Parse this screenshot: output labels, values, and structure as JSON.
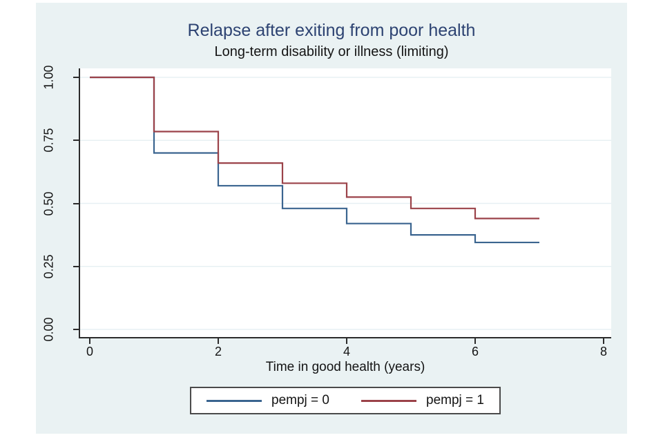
{
  "chart_data": {
    "type": "line",
    "line_style": "step",
    "title": "Relapse after exiting from poor health",
    "subtitle": "Long-term disability or illness (limiting)",
    "xlabel": "Time in good health (years)",
    "ylabel": "",
    "xlim": [
      0,
      8
    ],
    "ylim": [
      0,
      1
    ],
    "xticks": [
      0,
      2,
      4,
      6,
      8
    ],
    "xtick_labels": [
      "0",
      "2",
      "4",
      "6",
      "8"
    ],
    "yticks": [
      0,
      0.25,
      0.5,
      0.75,
      1
    ],
    "ytick_labels": [
      "0.00",
      "0.25",
      "0.50",
      "0.75",
      "1.00"
    ],
    "grid": true,
    "legend_position": "bottom-center",
    "series": [
      {
        "name": "pempj = 0",
        "color": "#3a648f",
        "end_x": 7,
        "steps": [
          [
            0,
            1.0
          ],
          [
            1,
            0.7
          ],
          [
            2,
            0.57
          ],
          [
            3,
            0.48
          ],
          [
            4,
            0.42
          ],
          [
            5,
            0.375
          ],
          [
            6,
            0.345
          ]
        ]
      },
      {
        "name": "pempj = 1",
        "color": "#9b4249",
        "end_x": 7,
        "steps": [
          [
            0,
            1.0
          ],
          [
            1,
            0.785
          ],
          [
            2,
            0.66
          ],
          [
            3,
            0.58
          ],
          [
            4,
            0.525
          ],
          [
            5,
            0.48
          ],
          [
            6,
            0.44
          ]
        ]
      }
    ],
    "colors": {
      "canvas_bg": "#eaf2f3",
      "plot_bg": "#ffffff",
      "grid": "#e7f0f3",
      "axis": "#2b2b2b",
      "title": "#2d4372",
      "text": "#141414",
      "legend_border": "#4a4a4a"
    }
  }
}
